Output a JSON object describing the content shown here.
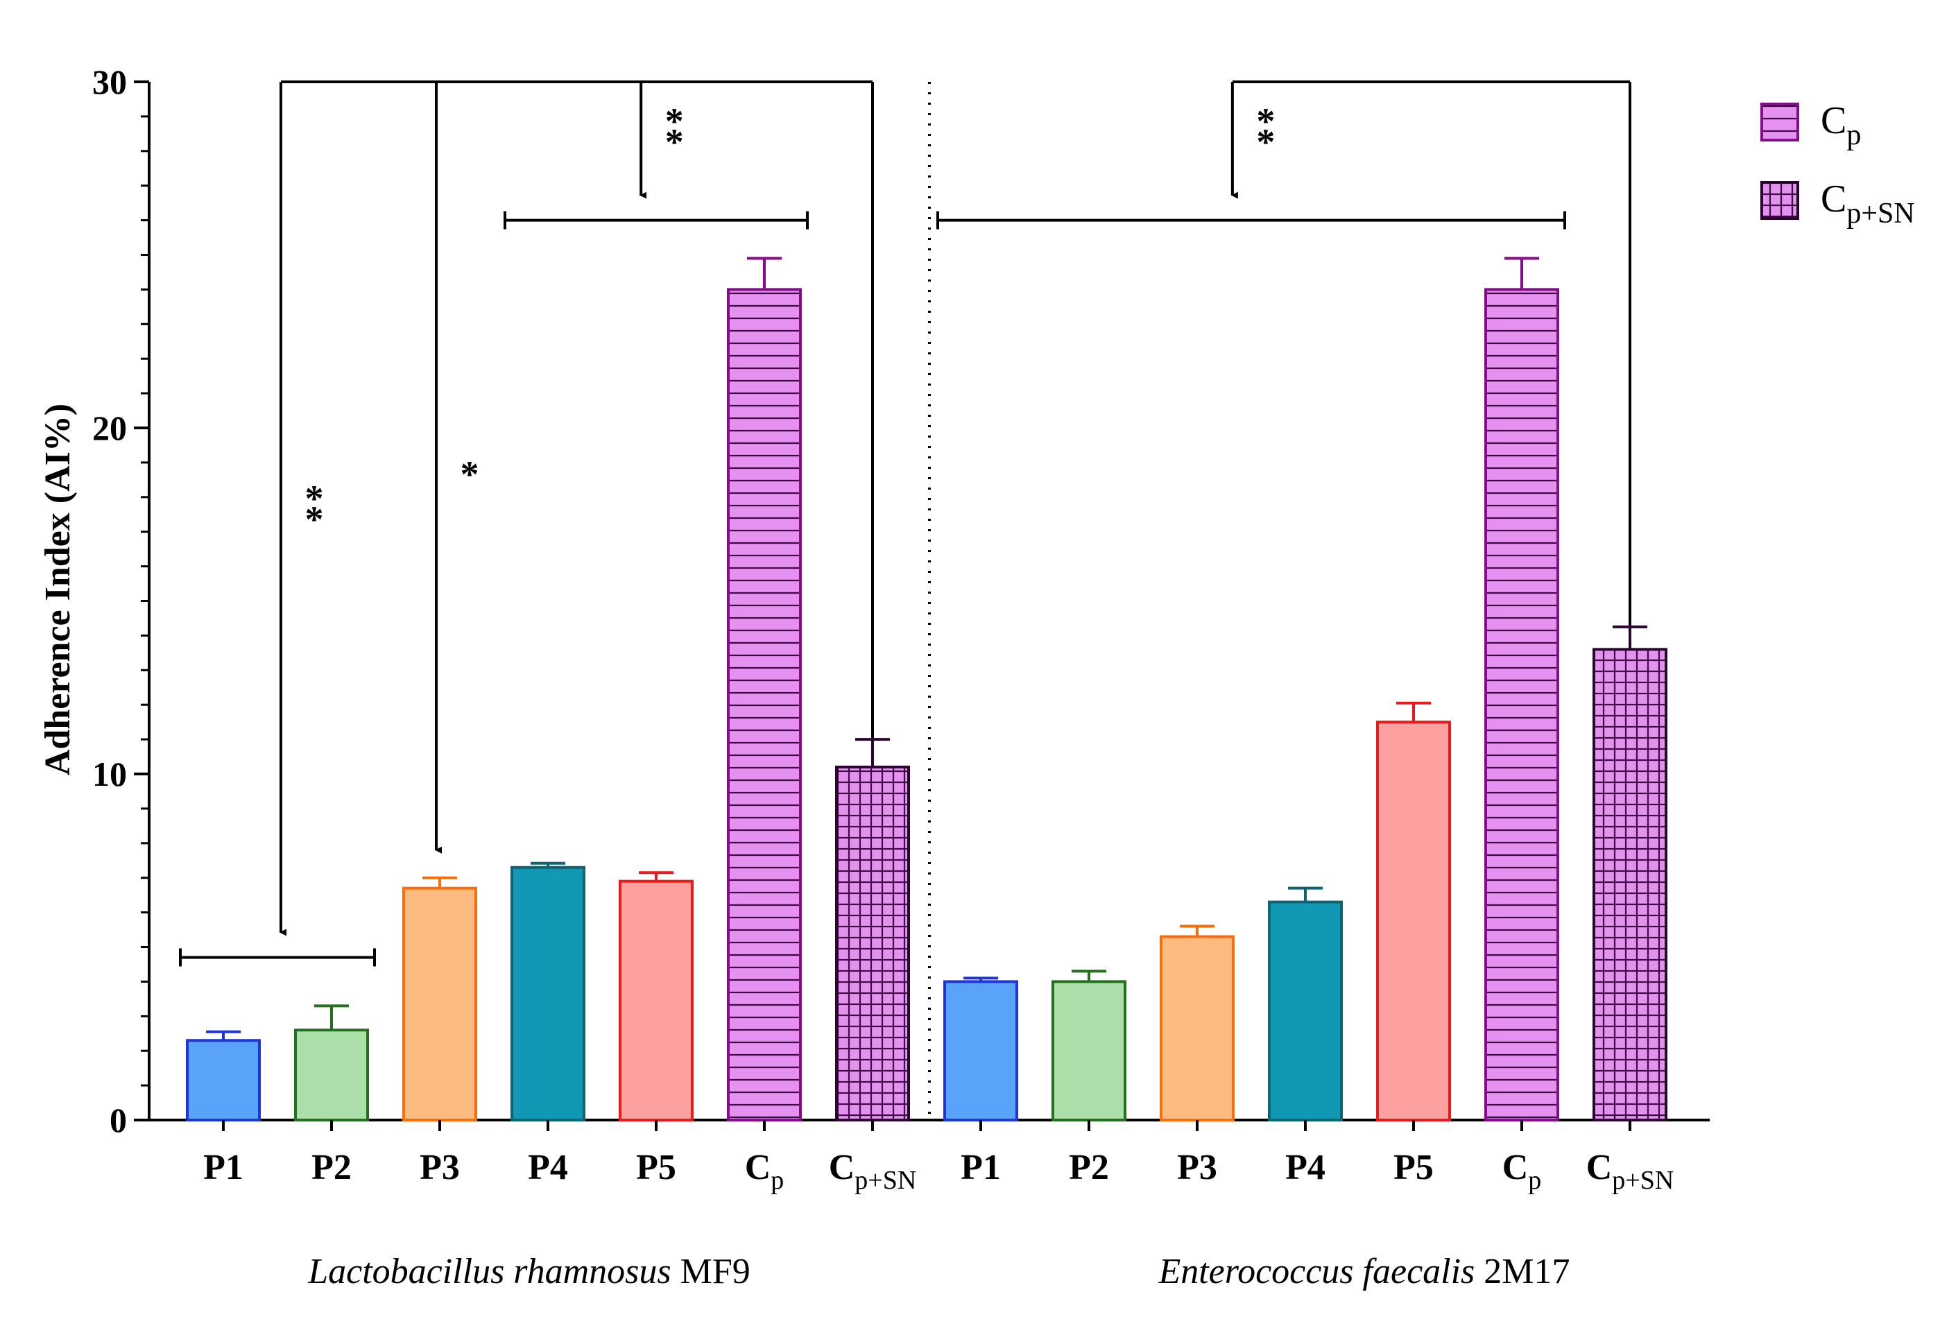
{
  "chart_data": {
    "type": "bar",
    "ylabel": "Adherence Index (AI%)",
    "ylim": [
      0,
      30
    ],
    "yticks": [
      "0",
      "10",
      "20",
      "30"
    ],
    "grid": false,
    "legend_position": "top-right",
    "groups": [
      {
        "name_italic": "Lactobacillus rhamnosus",
        "name_suffix": "MF9",
        "bars": [
          {
            "label": "P1",
            "value": 2.3,
            "error": 0.25,
            "color": "#5aa3fb",
            "edge": "#1f36d4",
            "pattern": "none"
          },
          {
            "label": "P2",
            "value": 2.6,
            "error": 0.7,
            "color": "#addfab",
            "edge": "#23701f",
            "pattern": "none"
          },
          {
            "label": "P3",
            "value": 6.7,
            "error": 0.3,
            "color": "#fdbb80",
            "edge": "#f66f0a",
            "pattern": "none"
          },
          {
            "label": "P4",
            "value": 7.3,
            "error": 0.12,
            "color": "#1098b4",
            "edge": "#0e6470",
            "pattern": "none"
          },
          {
            "label": "P5",
            "value": 6.9,
            "error": 0.25,
            "color": "#fca0a0",
            "edge": "#ea1a1a",
            "pattern": "none"
          },
          {
            "label": "Cp",
            "label_main": "C",
            "label_sub": "p",
            "value": 24.0,
            "error": 0.9,
            "color": "#e591f0",
            "edge": "#870c8b",
            "pattern": "horizontal"
          },
          {
            "label": "Cp+SN",
            "label_main": "C",
            "label_sub": "p+SN",
            "value": 10.2,
            "error": 0.8,
            "color": "#e591f0",
            "edge": "#2a0530",
            "pattern": "grid"
          }
        ]
      },
      {
        "name_italic": "Enterococcus faecalis",
        "name_suffix": "2M17",
        "bars": [
          {
            "label": "P1",
            "value": 4.0,
            "error": 0.1,
            "color": "#5aa3fb",
            "edge": "#1f36d4",
            "pattern": "none"
          },
          {
            "label": "P2",
            "value": 4.0,
            "error": 0.3,
            "color": "#addfab",
            "edge": "#23701f",
            "pattern": "none"
          },
          {
            "label": "P3",
            "value": 5.3,
            "error": 0.3,
            "color": "#fdbb80",
            "edge": "#f66f0a",
            "pattern": "none"
          },
          {
            "label": "P4",
            "value": 6.3,
            "error": 0.4,
            "color": "#1098b4",
            "edge": "#0e6470",
            "pattern": "none"
          },
          {
            "label": "P5",
            "value": 11.5,
            "error": 0.55,
            "color": "#fca0a0",
            "edge": "#ea1a1a",
            "pattern": "none"
          },
          {
            "label": "Cp",
            "label_main": "C",
            "label_sub": "p",
            "value": 24.0,
            "error": 0.9,
            "color": "#e591f0",
            "edge": "#870c8b",
            "pattern": "horizontal"
          },
          {
            "label": "Cp+SN",
            "label_main": "C",
            "label_sub": "p+SN",
            "value": 13.6,
            "error": 0.65,
            "color": "#e591f0",
            "edge": "#2a0530",
            "pattern": "grid"
          }
        ]
      }
    ],
    "legend": [
      {
        "label": "Cp",
        "label_main": "C",
        "label_sub": "p",
        "pattern": "horizontal"
      },
      {
        "label": "Cp+SN",
        "label_main": "C",
        "label_sub": "p+SN",
        "pattern": "grid"
      }
    ],
    "annotations": [
      {
        "stars": "**",
        "from": "Cp+SN",
        "to_range": [
          "P1",
          "P2"
        ],
        "group": 0
      },
      {
        "stars": "*",
        "from": "Cp+SN",
        "to": "P3",
        "group": 0
      },
      {
        "stars": "**",
        "from": "Cp+SN",
        "to_range": [
          "P4",
          "Cp"
        ],
        "group": 0
      },
      {
        "stars": "**",
        "from": "Cp+SN",
        "to_range": [
          "P1",
          "Cp"
        ],
        "group": 1
      }
    ]
  }
}
